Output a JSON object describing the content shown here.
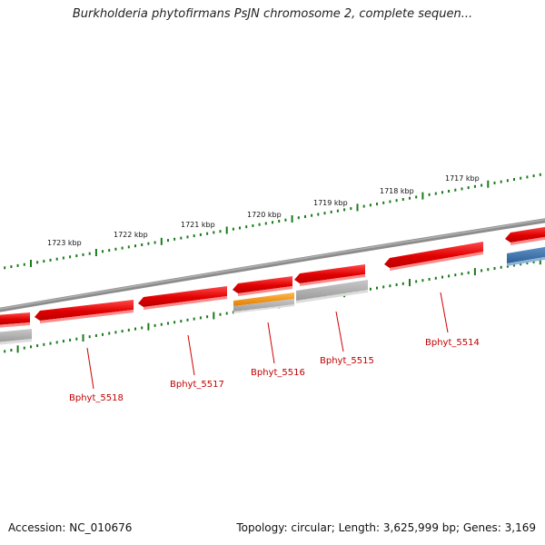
{
  "header": {
    "title": "Burkholderia phytofirmans PsJN chromosome 2, complete sequen..."
  },
  "footer": {
    "accession": "Accession: NC_010676",
    "topology": "Topology: circular; Length: 3,625,999 bp; Genes: 3,169"
  },
  "scale_labels": [
    "1723 kbp",
    "1722 kbp",
    "1721 kbp",
    "1720 kbp",
    "1719 kbp",
    "1718 kbp",
    "1717 kbp"
  ],
  "gene_labels": [
    "Bphyt_5518",
    "Bphyt_5517",
    "Bphyt_5516",
    "Bphyt_5515",
    "Bphyt_5514"
  ],
  "colors": {
    "gene_red": "#ee1111",
    "gene_orange": "#f39a10",
    "gene_blue": "#3f78b0",
    "gene_gray": "#b4b4b4",
    "backbone": "#7d7d7d",
    "scale_tick": "#1b7a1b",
    "label_red": "#c00000"
  }
}
